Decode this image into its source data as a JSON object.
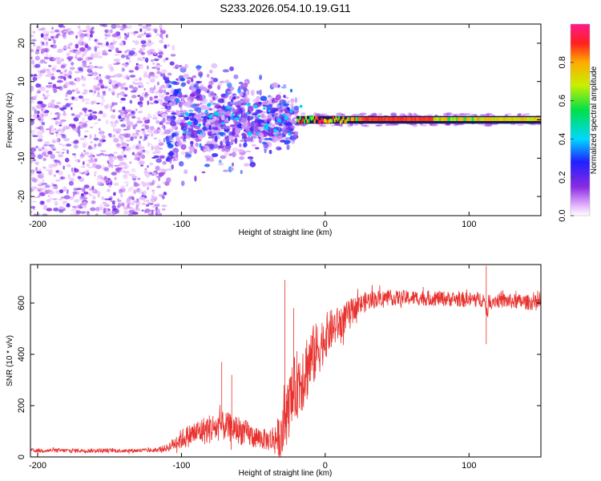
{
  "title": "S233.2026.054.10.19.G11",
  "chart_data": [
    {
      "type": "heatmap",
      "name": "spectrogram",
      "xlabel": "Height of straight line (km)",
      "ylabel": "Frequency (Hz)",
      "xlim": [
        -205,
        150
      ],
      "ylim": [
        -25,
        25
      ],
      "xticks": [
        -200,
        -100,
        0,
        100
      ],
      "xtick_labels": [
        "-200",
        "-100",
        "0",
        "100"
      ],
      "yticks": [
        -20,
        -10,
        0,
        10,
        20
      ],
      "ytick_labels": [
        "-20",
        "-10",
        "0",
        "10",
        "20"
      ],
      "colorbar": {
        "label": "Normalized spectral amplitude",
        "range": [
          0,
          1
        ],
        "ticks": [
          0.0,
          0.2,
          0.4,
          0.6,
          0.8
        ],
        "tick_labels": [
          "0.0",
          "0.2",
          "0.4",
          "0.6",
          "0.8"
        ]
      },
      "regions": [
        {
          "x_range": [
            -205,
            -110
          ],
          "freq_range": [
            -25,
            25
          ],
          "level": 0.15,
          "description": "broadband noise"
        },
        {
          "x_range": [
            -110,
            -20
          ],
          "freq_range": [
            -15,
            15
          ],
          "level": 0.25,
          "description": "diffuse scattered energy"
        },
        {
          "x_range": [
            -20,
            150
          ],
          "freq_center": 0,
          "level": 0.9,
          "description": "narrow carrier line near 0 Hz"
        }
      ]
    },
    {
      "type": "line",
      "name": "snr",
      "xlabel": "Height of straight line (km)",
      "ylabel": "SNR (10 * v/v)",
      "xlim": [
        -205,
        150
      ],
      "ylim": [
        0,
        750
      ],
      "xticks": [
        -200,
        -100,
        0,
        100
      ],
      "xtick_labels": [
        "-200",
        "-100",
        "0",
        "100"
      ],
      "yticks": [
        0,
        200,
        400,
        600
      ],
      "ytick_labels": [
        "0",
        "200",
        "400",
        "600"
      ],
      "color": "#e8322e",
      "envelope": {
        "x": [
          -205,
          -120,
          -110,
          -100,
          -90,
          -80,
          -70,
          -60,
          -50,
          -40,
          -30,
          -25,
          -20,
          -15,
          -10,
          -5,
          0,
          5,
          10,
          15,
          20,
          30,
          40,
          60,
          80,
          100,
          110,
          112,
          114,
          120,
          150
        ],
        "y": [
          25,
          25,
          35,
          70,
          95,
          110,
          120,
          105,
          80,
          65,
          80,
          200,
          280,
          330,
          380,
          420,
          470,
          500,
          520,
          550,
          580,
          610,
          620,
          620,
          618,
          612,
          615,
          560,
          612,
          610,
          600
        ]
      },
      "noise_envelope": {
        "x": [
          -205,
          -120,
          -110,
          -100,
          -80,
          -60,
          -40,
          -25,
          -15,
          0,
          20,
          40,
          150
        ],
        "y": [
          8,
          8,
          15,
          40,
          60,
          55,
          40,
          120,
          150,
          90,
          45,
          30,
          30
        ]
      },
      "spikes": [
        {
          "x": -72,
          "y": 370
        },
        {
          "x": -65,
          "y": 320
        },
        {
          "x": -28,
          "y": 690
        },
        {
          "x": -22,
          "y": 580
        },
        {
          "x": 112,
          "y": 745
        },
        {
          "x": 112,
          "y": 440
        }
      ]
    }
  ]
}
